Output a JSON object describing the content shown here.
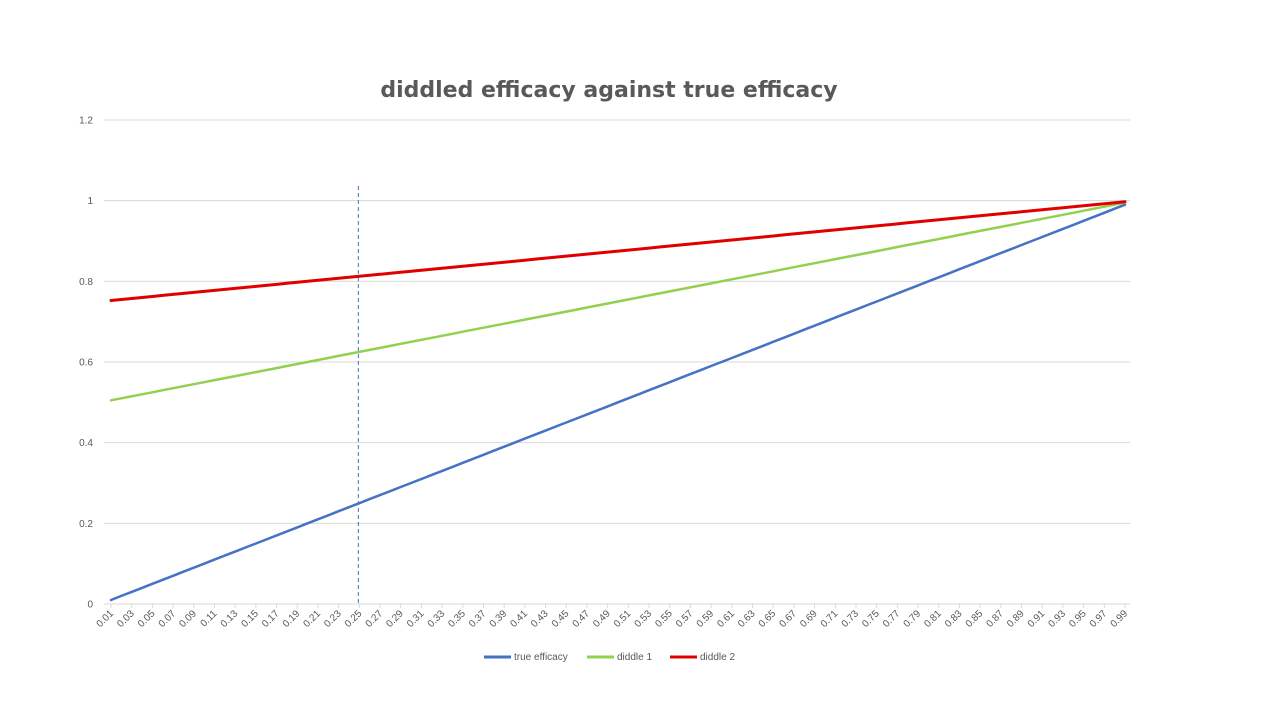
{
  "chart_data": {
    "type": "line",
    "title": "diddled efficacy against true efficacy",
    "xlabel": "",
    "ylabel": "",
    "ylim": [
      0,
      1.2
    ],
    "yticks": [
      "0",
      "0.2",
      "0.4",
      "0.6",
      "0.8",
      "1",
      "1.2"
    ],
    "x_start": 0.01,
    "x_end": 0.99,
    "x_step": 0.01,
    "x_tick_labels": [
      "0.01",
      "0.03",
      "0.05",
      "0.07",
      "0.09",
      "0.11",
      "0.13",
      "0.15",
      "0.17",
      "0.19",
      "0.21",
      "0.23",
      "0.25",
      "0.27",
      "0.29",
      "0.31",
      "0.33",
      "0.35",
      "0.37",
      "0.39",
      "0.41",
      "0.43",
      "0.45",
      "0.47",
      "0.49",
      "0.51",
      "0.53",
      "0.55",
      "0.57",
      "0.59",
      "0.61",
      "0.63",
      "0.65",
      "0.67",
      "0.69",
      "0.71",
      "0.73",
      "0.75",
      "0.77",
      "0.79",
      "0.81",
      "0.83",
      "0.85",
      "0.87",
      "0.89",
      "0.91",
      "0.93",
      "0.95",
      "0.97",
      "0.99"
    ],
    "reference_line_x": 0.25,
    "grid": true,
    "legend_position": "bottom",
    "series": [
      {
        "name": "true efficacy",
        "color": "#4472c4",
        "formula": "y = x"
      },
      {
        "name": "diddle 1",
        "color": "#92d050",
        "formula": "y = 0.5 + 0.5x"
      },
      {
        "name": "diddle 2",
        "color": "#e00000",
        "formula": "y = 0.75 + 0.25x"
      }
    ]
  }
}
